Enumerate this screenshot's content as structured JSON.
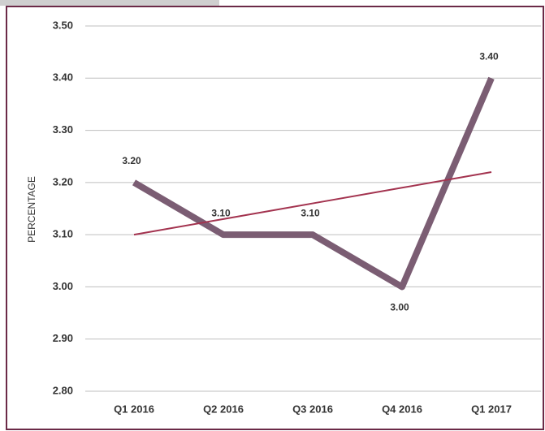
{
  "chart_data": {
    "type": "line",
    "y_axis_label": "PERCENTAGE",
    "categories": [
      "Q1 2016",
      "Q2 2016",
      "Q3 2016",
      "Q4 2016",
      "Q1 2017"
    ],
    "series": [
      {
        "color": "#7b5d73",
        "values": [
          3.2,
          3.1,
          3.1,
          3.0,
          3.4
        ],
        "value_labels": [
          "3.20",
          "3.10",
          "3.10",
          "3.00",
          "3.40"
        ]
      }
    ],
    "trendline": {
      "color": "#a3334f",
      "values": [
        3.1,
        3.13,
        3.16,
        3.19,
        3.22
      ]
    },
    "ylim": [
      2.8,
      3.5
    ],
    "yticks": [
      {
        "value": 2.8,
        "label": "2.80"
      },
      {
        "value": 2.9,
        "label": "2.90"
      },
      {
        "value": 3.0,
        "label": "3.00"
      },
      {
        "value": 3.1,
        "label": "3.10"
      },
      {
        "value": 3.2,
        "label": "3.20"
      },
      {
        "value": 3.3,
        "label": "3.30"
      },
      {
        "value": 3.4,
        "label": "3.40"
      },
      {
        "value": 3.5,
        "label": "3.50"
      }
    ],
    "grid": true
  }
}
